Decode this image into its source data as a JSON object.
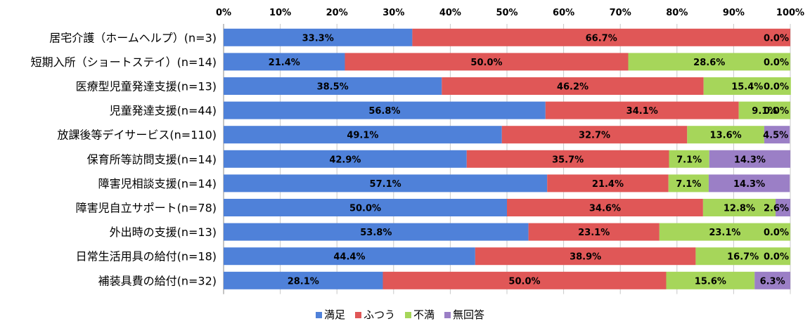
{
  "chart_data": {
    "type": "bar",
    "orientation": "horizontal",
    "stacked": true,
    "title": "",
    "xlabel": "",
    "ylabel": "",
    "xlim": [
      0,
      100
    ],
    "x_ticks": [
      "0%",
      "10%",
      "20%",
      "30%",
      "40%",
      "50%",
      "60%",
      "70%",
      "80%",
      "90%",
      "100%"
    ],
    "grid": true,
    "legend_position": "bottom",
    "categories": [
      "居宅介護（ホームヘルプ）(n=3)",
      "短期入所（ショートステイ）(n=14)",
      "医療型児童発達支援(n=13)",
      "児童発達支援(n=44)",
      "放課後等デイサービス(n=110)",
      "保育所等訪問支援(n=14)",
      "障害児相談支援(n=14)",
      "障害児自立サポート(n=78)",
      "外出時の支援(n=13)",
      "日常生活用具の給付(n=18)",
      "補装具費の給付(n=32)"
    ],
    "series": [
      {
        "name": "満足",
        "color": "#4f81d9",
        "values": [
          33.3,
          21.4,
          38.5,
          56.8,
          49.1,
          42.9,
          57.1,
          50.0,
          53.8,
          44.4,
          28.1
        ],
        "labels": [
          "33.3%",
          "21.4%",
          "38.5%",
          "56.8%",
          "49.1%",
          "42.9%",
          "57.1%",
          "50.0%",
          "53.8%",
          "44.4%",
          "28.1%"
        ]
      },
      {
        "name": "ふつう",
        "color": "#e05757",
        "values": [
          66.7,
          50.0,
          46.2,
          34.1,
          32.7,
          35.7,
          21.4,
          34.6,
          23.1,
          38.9,
          50.0
        ],
        "labels": [
          "66.7%",
          "50.0%",
          "46.2%",
          "34.1%",
          "32.7%",
          "35.7%",
          "21.4%",
          "34.6%",
          "23.1%",
          "38.9%",
          "50.0%"
        ]
      },
      {
        "name": "不満",
        "color": "#a6d65a",
        "values": [
          0.0,
          28.6,
          15.4,
          9.1,
          13.6,
          7.1,
          7.1,
          12.8,
          23.1,
          16.7,
          15.6
        ],
        "labels": [
          "",
          "28.6%",
          "15.4%",
          "9.1%",
          "13.6%",
          "7.1%",
          "7.1%",
          "12.8%",
          "23.1%",
          "16.7%",
          "15.6%"
        ]
      },
      {
        "name": "無回答",
        "color": "#9b7fc6",
        "values": [
          0.0,
          0.0,
          0.0,
          0.0,
          4.5,
          14.3,
          14.3,
          2.6,
          0.0,
          0.0,
          6.3
        ],
        "labels": [
          "0.0%",
          "0.0%",
          "0.0%",
          "0.0%",
          "4.5%",
          "14.3%",
          "14.3%",
          "2.6%",
          "0.0%",
          "0.0%",
          "6.3%"
        ]
      }
    ]
  }
}
